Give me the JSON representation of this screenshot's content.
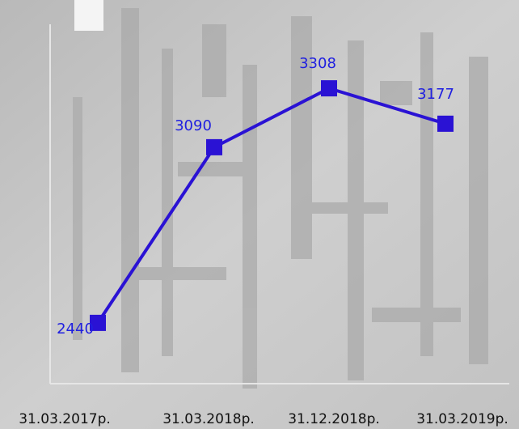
{
  "chart_data": {
    "type": "line",
    "categories": [
      "31.03.2017р.",
      "31.03.2018р.",
      "31.12.2018р.",
      "31.03.2019р."
    ],
    "values": [
      2440,
      3090,
      3308,
      3177
    ],
    "color": "#2a12d4",
    "ylim": [
      2215,
      3545
    ]
  }
}
